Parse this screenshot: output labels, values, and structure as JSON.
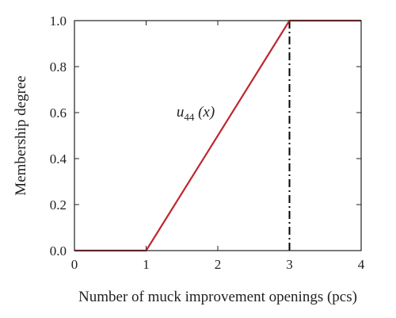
{
  "chart_data": {
    "type": "line",
    "xlabel": "Number of muck improvement openings (pcs)",
    "ylabel": "Membership degree",
    "xlim": [
      0,
      4
    ],
    "ylim": [
      0,
      1
    ],
    "xticks": [
      0,
      1,
      2,
      3,
      4
    ],
    "xtick_labels": [
      "0",
      "1",
      "2",
      "3",
      "4"
    ],
    "yticks": [
      0,
      0.2,
      0.4,
      0.6,
      0.8,
      1.0
    ],
    "ytick_labels": [
      "0.0",
      "0.2",
      "0.4",
      "0.6",
      "0.8",
      "1.0"
    ],
    "grid": false,
    "series": [
      {
        "x": [
          0,
          1,
          3,
          4
        ],
        "y": [
          0,
          0,
          1,
          1
        ],
        "color": "#c0262d"
      }
    ],
    "vertical_lines": [
      {
        "x": 3,
        "style": "dash-dot",
        "color": "#000000"
      }
    ],
    "annotations": [
      {
        "text": "u",
        "subscript": "44",
        "suffix": " (x)",
        "x": 2.0,
        "y": 0.61
      }
    ]
  }
}
